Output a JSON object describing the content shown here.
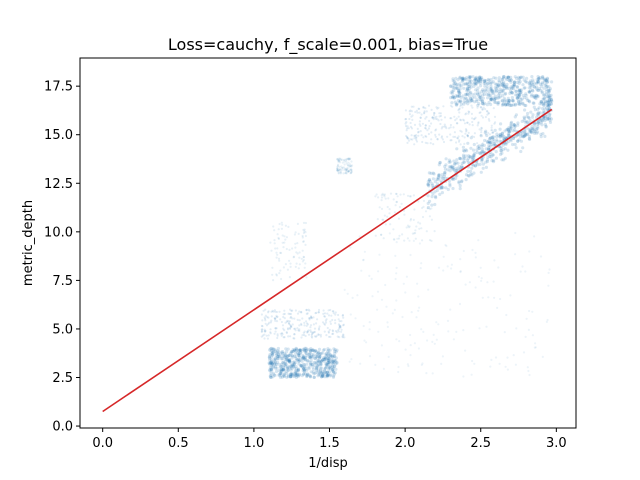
{
  "chart_data": {
    "type": "scatter",
    "title": "Loss=cauchy, f_scale=0.001, bias=True",
    "xlabel": "1/disp",
    "ylabel": "metric_depth",
    "xlim": [
      -0.15,
      3.13
    ],
    "ylim": [
      -0.1,
      18.95
    ],
    "xticks": [
      0.0,
      0.5,
      1.0,
      1.5,
      2.0,
      2.5,
      3.0
    ],
    "xtick_labels": [
      "0.0",
      "0.5",
      "1.0",
      "1.5",
      "2.0",
      "2.5",
      "3.0"
    ],
    "yticks": [
      0.0,
      2.5,
      5.0,
      7.5,
      10.0,
      12.5,
      15.0,
      17.5
    ],
    "ytick_labels": [
      "0.0",
      "2.5",
      "5.0",
      "7.5",
      "10.0",
      "12.5",
      "15.0",
      "17.5"
    ],
    "grid": false,
    "scatter_color": "#1f77b4",
    "fit_color": "#d62728",
    "scatter_clusters": [
      {
        "x_range": [
          2.15,
          2.97
        ],
        "y_at_x0": 12.2,
        "slope": 5.0,
        "spread": 0.9,
        "density": "high"
      },
      {
        "x_range": [
          2.3,
          2.97
        ],
        "y_range": [
          16.5,
          18.0
        ],
        "density": "high"
      },
      {
        "x_range": [
          2.0,
          2.6
        ],
        "y_range": [
          14.5,
          16.5
        ],
        "density": "medium"
      },
      {
        "x_range": [
          1.1,
          1.55
        ],
        "y_range": [
          2.5,
          4.0
        ],
        "density": "high"
      },
      {
        "x_range": [
          1.05,
          1.6
        ],
        "y_range": [
          4.5,
          6.0
        ],
        "density": "medium"
      },
      {
        "x_range": [
          1.1,
          1.35
        ],
        "y_range": [
          7.5,
          10.5
        ],
        "density": "low"
      },
      {
        "x_range": [
          1.55,
          1.65
        ],
        "y_range": [
          13.0,
          13.8
        ],
        "density": "low"
      },
      {
        "x_range": [
          1.8,
          2.2
        ],
        "y_range": [
          9.5,
          12.0
        ],
        "density": "low"
      },
      {
        "x_range": [
          1.6,
          2.97
        ],
        "y_range": [
          2.5,
          10.0
        ],
        "density": "sparse"
      }
    ],
    "fit_line": {
      "x": [
        0.0,
        2.97
      ],
      "y": [
        0.75,
        16.3
      ]
    }
  }
}
